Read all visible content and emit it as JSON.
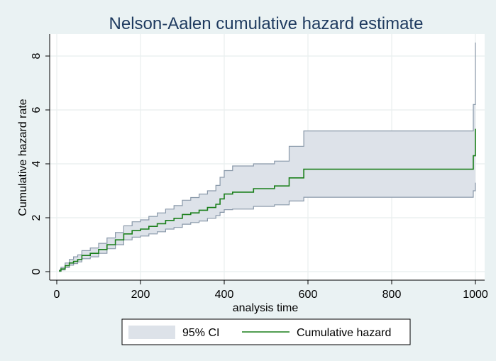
{
  "chart_data": {
    "type": "line",
    "title": "Nelson-Aalen cumulative hazard estimate",
    "xlabel": "analysis time",
    "ylabel": "Cumulative hazard rate",
    "xlim": [
      0,
      1000
    ],
    "ylim": [
      0,
      8.5
    ],
    "xticks": [
      0,
      200,
      400,
      600,
      800,
      1000
    ],
    "yticks": [
      0,
      2,
      4,
      6,
      8
    ],
    "grid": true,
    "legend": {
      "position": "bottom",
      "entries": [
        "95% CI",
        "Cumulative hazard"
      ]
    },
    "colors": {
      "hazard": "#1a7f1a",
      "ci_fill": "#dde2e9",
      "ci_line": "#8a99aa",
      "background": "#eaf2f3",
      "plot_bg": "#ffffff"
    },
    "series": [
      {
        "name": "Cumulative hazard",
        "x": [
          5,
          10,
          20,
          30,
          40,
          50,
          60,
          80,
          100,
          120,
          140,
          160,
          180,
          200,
          220,
          240,
          260,
          280,
          300,
          320,
          340,
          360,
          380,
          390,
          400,
          420,
          470,
          520,
          555,
          590,
          700,
          800,
          900,
          995,
          1000
        ],
        "y": [
          0.03,
          0.1,
          0.22,
          0.32,
          0.38,
          0.45,
          0.6,
          0.68,
          0.82,
          1.0,
          1.18,
          1.4,
          1.52,
          1.58,
          1.68,
          1.78,
          1.9,
          1.98,
          2.12,
          2.18,
          2.28,
          2.38,
          2.5,
          2.7,
          2.88,
          2.95,
          3.08,
          3.18,
          3.48,
          3.8,
          3.8,
          3.8,
          3.8,
          4.3,
          5.3
        ]
      },
      {
        "name": "95% CI",
        "x": [
          5,
          10,
          20,
          30,
          40,
          50,
          60,
          80,
          100,
          120,
          140,
          160,
          180,
          200,
          220,
          240,
          260,
          280,
          300,
          320,
          340,
          360,
          380,
          390,
          400,
          420,
          470,
          520,
          555,
          590,
          700,
          800,
          900,
          995,
          1000
        ],
        "lower": [
          0.01,
          0.06,
          0.15,
          0.24,
          0.3,
          0.36,
          0.48,
          0.55,
          0.68,
          0.85,
          1.0,
          1.18,
          1.28,
          1.32,
          1.4,
          1.48,
          1.58,
          1.64,
          1.76,
          1.82,
          1.88,
          1.98,
          2.08,
          2.2,
          2.3,
          2.32,
          2.42,
          2.48,
          2.62,
          2.76,
          2.76,
          2.76,
          2.76,
          3.0,
          3.3
        ],
        "upper": [
          0.06,
          0.16,
          0.32,
          0.45,
          0.55,
          0.62,
          0.78,
          0.88,
          1.05,
          1.25,
          1.45,
          1.7,
          1.85,
          1.92,
          2.05,
          2.18,
          2.32,
          2.45,
          2.65,
          2.75,
          2.88,
          3.0,
          3.2,
          3.5,
          3.75,
          3.92,
          4.0,
          4.1,
          4.65,
          5.22,
          5.22,
          5.22,
          5.22,
          6.2,
          8.5
        ]
      }
    ]
  }
}
